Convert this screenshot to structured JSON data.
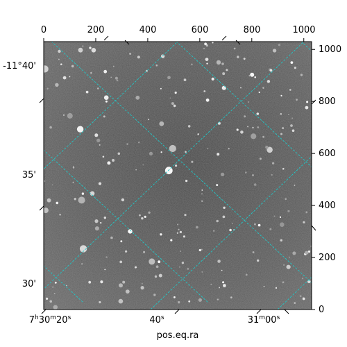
{
  "chart_data": {
    "type": "sky-image",
    "xlabel": "pos.eq.ra",
    "pixel_axes": {
      "x": {
        "ticks": [
          0,
          200,
          400,
          600,
          800,
          1000
        ],
        "range": [
          0,
          1030
        ]
      },
      "y": {
        "ticks": [
          0,
          200,
          400,
          600,
          800,
          1000
        ],
        "range": [
          0,
          1030
        ]
      }
    },
    "world_axes": {
      "dec_labels": [
        "-11°40'",
        "35'",
        "30'"
      ],
      "ra_labels": [
        {
          "base": "7",
          "h": "h",
          "mid": "30",
          "m": "m",
          "sec": "20",
          "s": "s"
        },
        {
          "base": "",
          "h": "",
          "mid": "",
          "m": "",
          "sec": "40",
          "s": "s"
        },
        {
          "base": "",
          "h": "",
          "mid": "31",
          "m": "m",
          "sec": "00",
          "s": "s"
        }
      ]
    },
    "grid": true,
    "grid_color": "#21c7c7",
    "image_colormap": "gray"
  }
}
